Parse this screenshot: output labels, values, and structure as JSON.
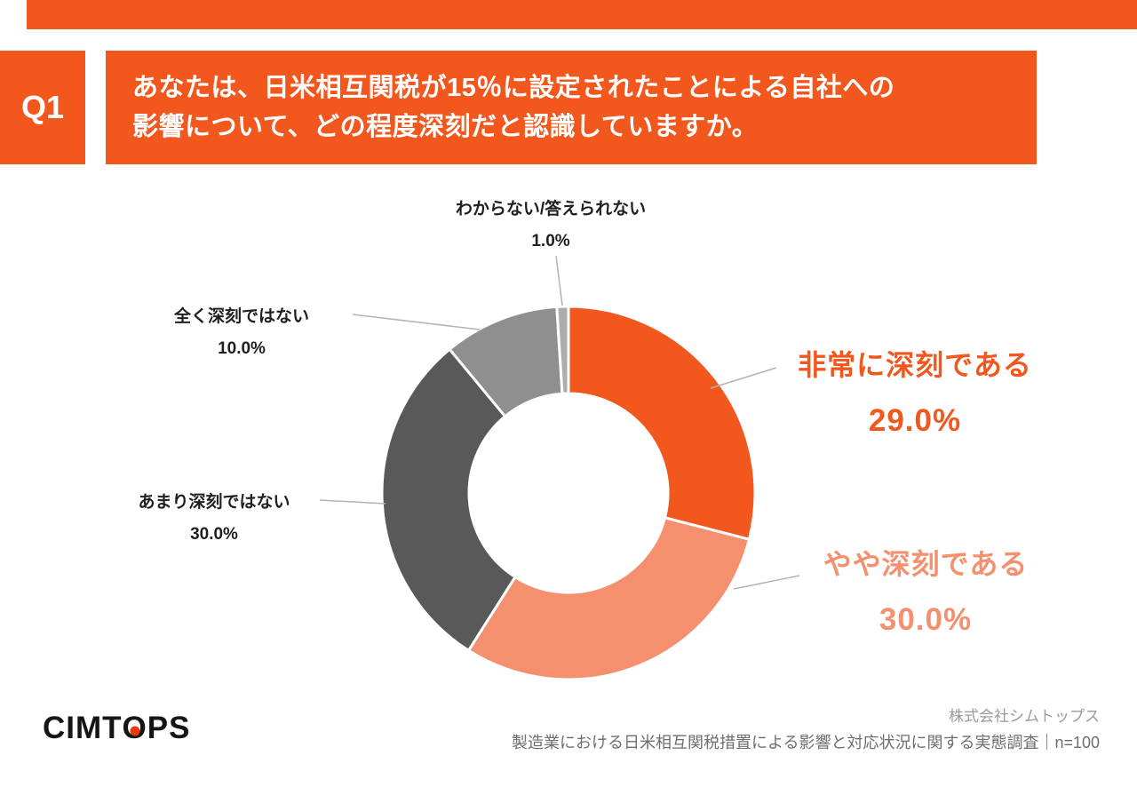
{
  "question": {
    "number": "Q1",
    "line1": "あなたは、日米相互関税が15％に設定されたことによる自社への",
    "line2": "影響について、どの程度深刻だと認識していますか。"
  },
  "chart_data": {
    "type": "pie",
    "subtype": "donut",
    "direction": "clockwise",
    "start_angle_deg": 0,
    "legend_position": "callout-labels",
    "segments": [
      {
        "label": "非常に深刻である",
        "value": 29.0,
        "display": "29.0%",
        "color": "#F2571E"
      },
      {
        "label": "やや深刻である",
        "value": 30.0,
        "display": "30.0%",
        "color": "#F5906F"
      },
      {
        "label": "あまり深刻ではない",
        "value": 30.0,
        "display": "30.0%",
        "color": "#595959"
      },
      {
        "label": "全く深刻ではない",
        "value": 10.0,
        "display": "10.0%",
        "color": "#8F8F8F"
      },
      {
        "label": "わからない/答えられない",
        "value": 1.0,
        "display": "1.0%",
        "color": "#ADADAD"
      }
    ]
  },
  "footer": {
    "logo": {
      "pre": "CIMT",
      "o": "O",
      "post": "PS"
    },
    "company": "株式会社シムトップス",
    "survey": "製造業における日米相互関税措置による影響と対応状況に関する実態調査｜n=100"
  },
  "colors": {
    "accent": "#F2571E",
    "salmon": "#F5906F",
    "dark_gray": "#595959",
    "mid_gray": "#8F8F8F",
    "light_gray": "#ADADAD",
    "leader": "#B3B3B3",
    "logo_dot": "#E8380D"
  }
}
